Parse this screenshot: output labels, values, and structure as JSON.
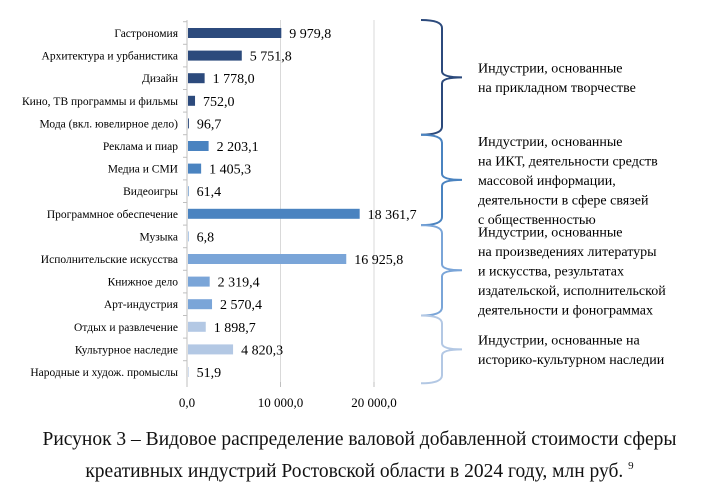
{
  "chart_data": {
    "type": "bar",
    "orientation": "horizontal",
    "categories": [
      "Гастрономия",
      "Архитектура и урбанистика",
      "Дизайн",
      "Кино, ТВ программы и фильмы",
      "Мода (вкл. ювелирное дело)",
      "Реклама и пиар",
      "Медиа и СМИ",
      "Видеоигры",
      "Программное обеспечение",
      "Музыка",
      "Исполнительские искусства",
      "Книжное дело",
      "Арт-индустрия",
      "Отдых и развлечение",
      "Культурное наследие",
      "Народные и худож. промыслы"
    ],
    "values": [
      9979.8,
      5751.8,
      1778.0,
      752.0,
      96.7,
      2203.1,
      1405.3,
      61.4,
      18361.7,
      6.8,
      16925.8,
      2319.4,
      2570.4,
      1898.7,
      4820.3,
      51.9
    ],
    "value_labels": [
      "9 979,8",
      "5 751,8",
      "1 778,0",
      "752,0",
      "96,7",
      "2 203,1",
      "1 405,3",
      "61,4",
      "18 361,7",
      "6,8",
      "16 925,8",
      "2 319,4",
      "2 570,4",
      "1 898,7",
      "4 820,3",
      "51,9"
    ],
    "xlim": [
      0,
      20000
    ],
    "xticks": [
      0,
      10000,
      20000
    ],
    "xtick_labels": [
      "0,0",
      "10 000,0",
      "20 000,0"
    ],
    "grid": true,
    "groups": [
      {
        "label_lines": [
          "Индустрии, основанные",
          "на прикладном творчестве"
        ],
        "from": 0,
        "to": 4,
        "color": "#2c4a7c"
      },
      {
        "label_lines": [
          "Индустрии, основанные",
          "на ИКТ, деятельности средств",
          "массовой информации,",
          "деятельности в сфере связей",
          "с общественностью"
        ],
        "from": 5,
        "to": 8,
        "color": "#4a83c0"
      },
      {
        "label_lines": [
          "Индустрии, основанные",
          "на произведениях литературы",
          "и искусства, результатах",
          "издательской, исполнительской",
          "деятельности и фонограммах"
        ],
        "from": 9,
        "to": 12,
        "color": "#7aa5d8"
      },
      {
        "label_lines": [
          "Индустрии, основанные на",
          "историко-культурном наследии"
        ],
        "from": 13,
        "to": 15,
        "color": "#b3c8e4"
      }
    ],
    "title": "Рисунок 3 – Видовое распределение валовой добавленной стоимости сферы креативных индустрий Ростовской области в 2024 году, млн руб.",
    "title_footnote": "9"
  },
  "caption": {
    "line1": "Рисунок 3 – Видовое распределение валовой добавленной стоимости сферы",
    "line2": "креативных индустрий Ростовской области в 2024 году, млн руб.",
    "footnote": "9"
  }
}
